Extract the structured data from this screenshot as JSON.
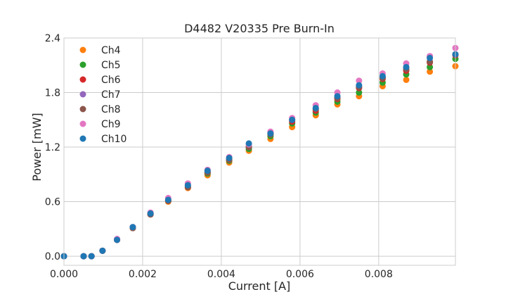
{
  "chart_data": {
    "type": "scatter",
    "title": "D4482 V20335 Pre Burn-In",
    "xlabel": "Current [A]",
    "ylabel": "Power [mW]",
    "xlim": [
      0,
      0.00995
    ],
    "ylim": [
      -0.1,
      2.4
    ],
    "xticks": [
      0.0,
      0.002,
      0.004,
      0.006,
      0.008
    ],
    "xtick_labels": [
      "0.000",
      "0.002",
      "0.004",
      "0.006",
      "0.008"
    ],
    "yticks": [
      0.0,
      0.6,
      1.2,
      1.8,
      2.4
    ],
    "ytick_labels": [
      "0.0",
      "0.6",
      "1.2",
      "1.8",
      "2.4"
    ],
    "grid": true,
    "legend_position": "top-left",
    "x": [
      0.0,
      0.0005,
      0.0007,
      0.00098,
      0.00135,
      0.00175,
      0.0022,
      0.00265,
      0.00315,
      0.00365,
      0.0042,
      0.0047,
      0.00525,
      0.0058,
      0.0064,
      0.00695,
      0.0075,
      0.0081,
      0.0087,
      0.0093,
      0.00995
    ],
    "series": [
      {
        "name": "Ch4",
        "color": "#ff7f0e",
        "values": [
          0.0,
          0.0,
          0.0,
          0.06,
          0.18,
          0.31,
          0.46,
          0.6,
          0.75,
          0.89,
          1.03,
          1.16,
          1.29,
          1.42,
          1.55,
          1.67,
          1.76,
          1.87,
          1.94,
          2.03,
          2.09
        ]
      },
      {
        "name": "Ch5",
        "color": "#2ca02c",
        "values": [
          0.0,
          0.0,
          0.0,
          0.06,
          0.18,
          0.31,
          0.46,
          0.61,
          0.76,
          0.91,
          1.05,
          1.18,
          1.32,
          1.46,
          1.58,
          1.7,
          1.8,
          1.91,
          2.0,
          2.08,
          2.17
        ]
      },
      {
        "name": "Ch6",
        "color": "#d62728",
        "values": [
          0.0,
          0.0,
          0.0,
          0.06,
          0.18,
          0.31,
          0.46,
          0.61,
          0.76,
          0.92,
          1.06,
          1.2,
          1.34,
          1.48,
          1.6,
          1.73,
          1.85,
          1.95,
          2.04,
          2.13,
          2.21
        ]
      },
      {
        "name": "Ch7",
        "color": "#9467bd",
        "values": [
          0.0,
          0.0,
          0.0,
          0.06,
          0.18,
          0.32,
          0.47,
          0.62,
          0.78,
          0.93,
          1.07,
          1.21,
          1.36,
          1.5,
          1.62,
          1.74,
          1.87,
          1.97,
          2.06,
          2.2,
          2.22
        ]
      },
      {
        "name": "Ch8",
        "color": "#8c564b",
        "values": [
          0.0,
          0.0,
          0.0,
          0.06,
          0.18,
          0.31,
          0.46,
          0.61,
          0.76,
          0.92,
          1.06,
          1.2,
          1.34,
          1.5,
          1.62,
          1.74,
          1.86,
          1.96,
          2.06,
          2.14,
          2.22
        ]
      },
      {
        "name": "Ch9",
        "color": "#e377c2",
        "values": [
          0.0,
          0.0,
          0.0,
          0.06,
          0.19,
          0.32,
          0.48,
          0.64,
          0.8,
          0.95,
          1.09,
          1.23,
          1.37,
          1.52,
          1.66,
          1.8,
          1.93,
          2.01,
          2.12,
          2.2,
          2.29
        ]
      },
      {
        "name": "Ch10",
        "color": "#1f77b4",
        "values": [
          0.0,
          0.0,
          0.0,
          0.06,
          0.18,
          0.32,
          0.47,
          0.62,
          0.78,
          0.94,
          1.08,
          1.24,
          1.35,
          1.5,
          1.63,
          1.76,
          1.88,
          1.98,
          2.08,
          2.18,
          2.22
        ]
      }
    ]
  },
  "style": {
    "grid_color": "#cccccc",
    "text_color": "#262626"
  }
}
